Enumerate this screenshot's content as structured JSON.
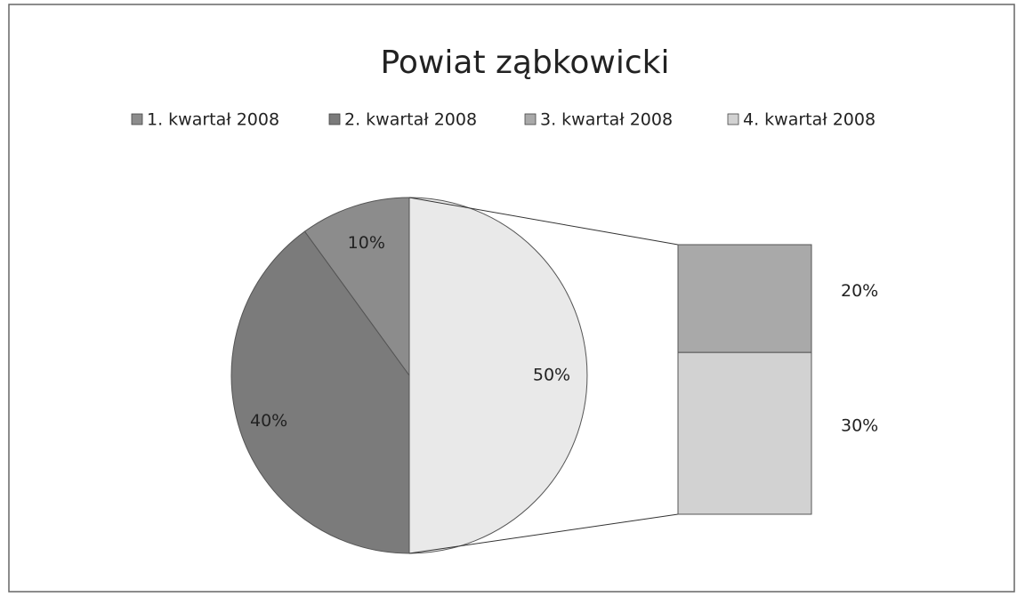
{
  "chart_data": {
    "type": "bar-of-pie",
    "title": "Powiat ząbkowicki",
    "categories": [
      "1. kwartał 2008",
      "2. kwartał 2008",
      "3. kwartał 2008",
      "4. kwartał 2008"
    ],
    "values": [
      10,
      40,
      20,
      30
    ],
    "value_labels": [
      "10%",
      "40%",
      "20%",
      "30%"
    ],
    "colors": [
      "#8c8c8c",
      "#7b7b7b",
      "#a9a9a9",
      "#d2d2d2"
    ],
    "other_value": 50,
    "other_value_label": "50%",
    "other_color": "#e9e9e9",
    "legend": "top"
  }
}
